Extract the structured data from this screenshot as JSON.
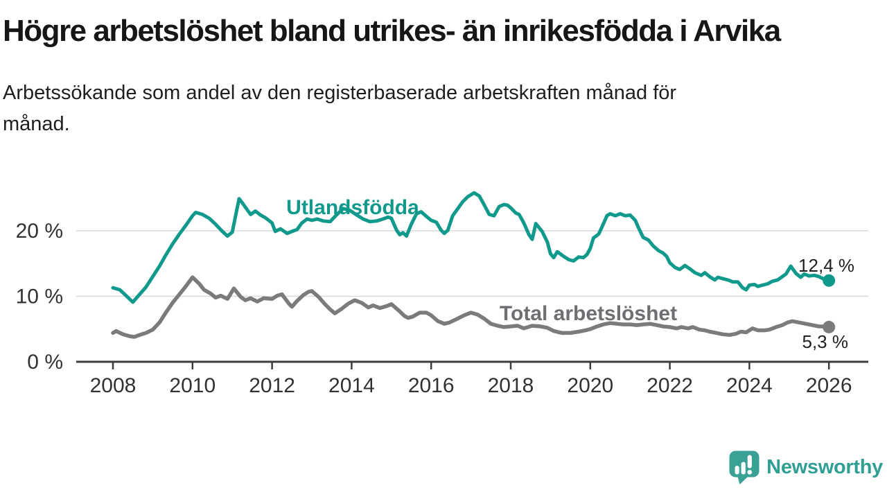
{
  "header": {
    "title": "Högre arbetslöshet bland utrikes- än inrikesfödda i Arvika",
    "subtitle_line1": "Arbetssökande som andel av den registerbaserade arbetskraften månad för",
    "subtitle_line2": "månad."
  },
  "chart_data": {
    "type": "line",
    "title": "Högre arbetslöshet bland utrikes- än inrikesfödda i Arvika",
    "subtitle": "Arbetssökande som andel av den registerbaserade arbetskraften månad för månad.",
    "unit": "%",
    "x_axis": {
      "range": [
        2007.9,
        2026.3
      ],
      "ticks": [
        2008,
        2010,
        2012,
        2014,
        2016,
        2018,
        2020,
        2022,
        2024,
        2026
      ]
    },
    "y_axis": {
      "range": [
        0,
        27
      ],
      "ticks": [
        {
          "value": 0,
          "label": "0 %"
        },
        {
          "value": 10,
          "label": "10 %"
        },
        {
          "value": 20,
          "label": "20 %"
        }
      ],
      "grid_color": "#d9d9d9",
      "axis_color": "#3d3d3d"
    },
    "series": [
      {
        "name": "Utlandsfödda",
        "color": "#119a8c",
        "label_color": "#119a8c",
        "end_label": "12,4 %",
        "end_value": 12.4,
        "points": [
          [
            2008.0,
            11.3
          ],
          [
            2008.17,
            11.0
          ],
          [
            2008.33,
            10.1
          ],
          [
            2008.5,
            9.1
          ],
          [
            2008.67,
            10.3
          ],
          [
            2008.83,
            11.4
          ],
          [
            2009.0,
            13.0
          ],
          [
            2009.17,
            14.6
          ],
          [
            2009.33,
            16.3
          ],
          [
            2009.5,
            18.0
          ],
          [
            2009.67,
            19.5
          ],
          [
            2009.83,
            20.8
          ],
          [
            2010.0,
            22.3
          ],
          [
            2010.08,
            22.8
          ],
          [
            2010.25,
            22.5
          ],
          [
            2010.42,
            21.9
          ],
          [
            2010.58,
            21.0
          ],
          [
            2010.75,
            19.9
          ],
          [
            2010.88,
            19.2
          ],
          [
            2011.0,
            19.8
          ],
          [
            2011.08,
            22.2
          ],
          [
            2011.17,
            24.9
          ],
          [
            2011.25,
            24.3
          ],
          [
            2011.33,
            23.6
          ],
          [
            2011.46,
            22.5
          ],
          [
            2011.58,
            23.0
          ],
          [
            2011.71,
            22.4
          ],
          [
            2011.83,
            22.0
          ],
          [
            2012.0,
            21.2
          ],
          [
            2012.08,
            19.9
          ],
          [
            2012.21,
            20.3
          ],
          [
            2012.38,
            19.6
          ],
          [
            2012.5,
            19.9
          ],
          [
            2012.63,
            20.2
          ],
          [
            2012.75,
            21.2
          ],
          [
            2012.88,
            21.8
          ],
          [
            2013.0,
            21.6
          ],
          [
            2013.13,
            21.8
          ],
          [
            2013.29,
            21.5
          ],
          [
            2013.46,
            21.4
          ],
          [
            2013.63,
            22.5
          ],
          [
            2013.79,
            23.4
          ],
          [
            2013.96,
            23.1
          ],
          [
            2014.13,
            22.4
          ],
          [
            2014.29,
            21.8
          ],
          [
            2014.46,
            21.4
          ],
          [
            2014.63,
            21.5
          ],
          [
            2014.79,
            21.8
          ],
          [
            2014.92,
            22.1
          ],
          [
            2015.0,
            21.9
          ],
          [
            2015.13,
            20.1
          ],
          [
            2015.21,
            19.4
          ],
          [
            2015.29,
            19.7
          ],
          [
            2015.38,
            19.2
          ],
          [
            2015.5,
            21.0
          ],
          [
            2015.63,
            22.6
          ],
          [
            2015.75,
            22.9
          ],
          [
            2015.88,
            22.2
          ],
          [
            2016.0,
            21.6
          ],
          [
            2016.13,
            21.3
          ],
          [
            2016.25,
            20.1
          ],
          [
            2016.33,
            19.6
          ],
          [
            2016.42,
            20.1
          ],
          [
            2016.54,
            22.3
          ],
          [
            2016.67,
            23.4
          ],
          [
            2016.79,
            24.4
          ],
          [
            2016.92,
            25.2
          ],
          [
            2017.08,
            25.8
          ],
          [
            2017.21,
            25.3
          ],
          [
            2017.33,
            24.0
          ],
          [
            2017.46,
            22.5
          ],
          [
            2017.58,
            22.3
          ],
          [
            2017.71,
            23.7
          ],
          [
            2017.83,
            24.0
          ],
          [
            2017.92,
            23.9
          ],
          [
            2018.0,
            23.5
          ],
          [
            2018.13,
            22.7
          ],
          [
            2018.21,
            22.5
          ],
          [
            2018.33,
            21.2
          ],
          [
            2018.46,
            19.4
          ],
          [
            2018.54,
            18.7
          ],
          [
            2018.63,
            21.1
          ],
          [
            2018.79,
            19.9
          ],
          [
            2018.92,
            18.3
          ],
          [
            2019.0,
            16.5
          ],
          [
            2019.08,
            15.9
          ],
          [
            2019.17,
            16.8
          ],
          [
            2019.33,
            16.1
          ],
          [
            2019.46,
            15.6
          ],
          [
            2019.58,
            15.4
          ],
          [
            2019.71,
            16.0
          ],
          [
            2019.83,
            15.9
          ],
          [
            2019.92,
            16.4
          ],
          [
            2020.0,
            17.3
          ],
          [
            2020.08,
            18.9
          ],
          [
            2020.21,
            19.5
          ],
          [
            2020.29,
            20.5
          ],
          [
            2020.42,
            22.3
          ],
          [
            2020.5,
            22.6
          ],
          [
            2020.63,
            22.3
          ],
          [
            2020.75,
            22.6
          ],
          [
            2020.88,
            22.3
          ],
          [
            2021.0,
            22.4
          ],
          [
            2021.13,
            21.6
          ],
          [
            2021.21,
            20.5
          ],
          [
            2021.33,
            19.0
          ],
          [
            2021.46,
            18.6
          ],
          [
            2021.58,
            17.7
          ],
          [
            2021.71,
            17.0
          ],
          [
            2021.83,
            16.6
          ],
          [
            2021.92,
            16.1
          ],
          [
            2022.0,
            15.1
          ],
          [
            2022.13,
            14.4
          ],
          [
            2022.25,
            14.1
          ],
          [
            2022.38,
            14.7
          ],
          [
            2022.5,
            14.2
          ],
          [
            2022.63,
            13.6
          ],
          [
            2022.79,
            13.2
          ],
          [
            2022.88,
            13.6
          ],
          [
            2023.0,
            13.0
          ],
          [
            2023.13,
            12.5
          ],
          [
            2023.21,
            12.9
          ],
          [
            2023.33,
            12.7
          ],
          [
            2023.46,
            12.5
          ],
          [
            2023.58,
            12.2
          ],
          [
            2023.71,
            12.2
          ],
          [
            2023.83,
            11.3
          ],
          [
            2023.92,
            11.0
          ],
          [
            2024.0,
            11.7
          ],
          [
            2024.13,
            11.8
          ],
          [
            2024.21,
            11.5
          ],
          [
            2024.33,
            11.7
          ],
          [
            2024.46,
            11.9
          ],
          [
            2024.58,
            12.3
          ],
          [
            2024.71,
            12.5
          ],
          [
            2024.83,
            13.0
          ],
          [
            2024.92,
            13.4
          ],
          [
            2025.04,
            14.6
          ],
          [
            2025.17,
            13.5
          ],
          [
            2025.29,
            12.9
          ],
          [
            2025.38,
            13.4
          ],
          [
            2025.5,
            13.1
          ],
          [
            2025.63,
            13.2
          ],
          [
            2025.75,
            13.0
          ],
          [
            2025.88,
            12.6
          ],
          [
            2026.0,
            12.4
          ]
        ]
      },
      {
        "name": "Total arbetslöshet",
        "color": "#7b7b7b",
        "label_color": "#6e6e73",
        "end_label": "5,3 %",
        "end_value": 5.3,
        "points": [
          [
            2008.0,
            4.4
          ],
          [
            2008.08,
            4.7
          ],
          [
            2008.25,
            4.2
          ],
          [
            2008.42,
            3.9
          ],
          [
            2008.54,
            3.8
          ],
          [
            2008.67,
            4.1
          ],
          [
            2008.83,
            4.4
          ],
          [
            2009.0,
            4.9
          ],
          [
            2009.17,
            6.0
          ],
          [
            2009.33,
            7.5
          ],
          [
            2009.5,
            9.0
          ],
          [
            2009.67,
            10.3
          ],
          [
            2009.83,
            11.5
          ],
          [
            2010.0,
            12.9
          ],
          [
            2010.17,
            11.9
          ],
          [
            2010.29,
            11.0
          ],
          [
            2010.46,
            10.4
          ],
          [
            2010.58,
            9.8
          ],
          [
            2010.71,
            10.1
          ],
          [
            2010.88,
            9.6
          ],
          [
            2011.04,
            11.2
          ],
          [
            2011.21,
            9.9
          ],
          [
            2011.33,
            9.4
          ],
          [
            2011.46,
            9.7
          ],
          [
            2011.63,
            9.2
          ],
          [
            2011.79,
            9.7
          ],
          [
            2012.0,
            9.6
          ],
          [
            2012.13,
            10.1
          ],
          [
            2012.25,
            10.3
          ],
          [
            2012.42,
            8.9
          ],
          [
            2012.5,
            8.4
          ],
          [
            2012.63,
            9.3
          ],
          [
            2012.79,
            10.2
          ],
          [
            2012.92,
            10.7
          ],
          [
            2013.0,
            10.8
          ],
          [
            2013.17,
            9.9
          ],
          [
            2013.33,
            8.8
          ],
          [
            2013.46,
            8.0
          ],
          [
            2013.58,
            7.4
          ],
          [
            2013.75,
            8.1
          ],
          [
            2013.92,
            8.9
          ],
          [
            2014.08,
            9.4
          ],
          [
            2014.25,
            9.0
          ],
          [
            2014.42,
            8.3
          ],
          [
            2014.54,
            8.6
          ],
          [
            2014.71,
            8.2
          ],
          [
            2014.88,
            8.5
          ],
          [
            2015.0,
            8.8
          ],
          [
            2015.17,
            7.9
          ],
          [
            2015.33,
            7.0
          ],
          [
            2015.42,
            6.7
          ],
          [
            2015.54,
            6.9
          ],
          [
            2015.71,
            7.5
          ],
          [
            2015.88,
            7.5
          ],
          [
            2016.0,
            7.1
          ],
          [
            2016.17,
            6.2
          ],
          [
            2016.33,
            5.8
          ],
          [
            2016.46,
            6.0
          ],
          [
            2016.63,
            6.5
          ],
          [
            2016.83,
            7.1
          ],
          [
            2017.0,
            7.5
          ],
          [
            2017.17,
            7.2
          ],
          [
            2017.33,
            6.6
          ],
          [
            2017.5,
            5.8
          ],
          [
            2017.67,
            5.5
          ],
          [
            2017.83,
            5.3
          ],
          [
            2018.0,
            5.4
          ],
          [
            2018.17,
            5.5
          ],
          [
            2018.33,
            5.1
          ],
          [
            2018.54,
            5.5
          ],
          [
            2018.75,
            5.4
          ],
          [
            2018.92,
            5.2
          ],
          [
            2019.08,
            4.7
          ],
          [
            2019.29,
            4.4
          ],
          [
            2019.5,
            4.4
          ],
          [
            2019.71,
            4.6
          ],
          [
            2019.88,
            4.8
          ],
          [
            2020.0,
            5.0
          ],
          [
            2020.17,
            5.4
          ],
          [
            2020.33,
            5.7
          ],
          [
            2020.5,
            5.9
          ],
          [
            2020.67,
            5.8
          ],
          [
            2020.83,
            5.7
          ],
          [
            2021.0,
            5.7
          ],
          [
            2021.17,
            5.6
          ],
          [
            2021.33,
            5.7
          ],
          [
            2021.5,
            5.8
          ],
          [
            2021.67,
            5.6
          ],
          [
            2021.83,
            5.4
          ],
          [
            2022.0,
            5.3
          ],
          [
            2022.17,
            5.1
          ],
          [
            2022.29,
            5.3
          ],
          [
            2022.46,
            5.1
          ],
          [
            2022.58,
            5.3
          ],
          [
            2022.75,
            4.9
          ],
          [
            2022.88,
            4.8
          ],
          [
            2023.0,
            4.6
          ],
          [
            2023.17,
            4.4
          ],
          [
            2023.33,
            4.2
          ],
          [
            2023.5,
            4.1
          ],
          [
            2023.67,
            4.3
          ],
          [
            2023.79,
            4.6
          ],
          [
            2023.92,
            4.5
          ],
          [
            2024.0,
            4.8
          ],
          [
            2024.08,
            5.1
          ],
          [
            2024.21,
            4.8
          ],
          [
            2024.38,
            4.8
          ],
          [
            2024.5,
            4.9
          ],
          [
            2024.67,
            5.3
          ],
          [
            2024.83,
            5.6
          ],
          [
            2024.96,
            6.0
          ],
          [
            2025.08,
            6.2
          ],
          [
            2025.25,
            6.0
          ],
          [
            2025.42,
            5.8
          ],
          [
            2025.58,
            5.6
          ],
          [
            2025.75,
            5.4
          ],
          [
            2025.88,
            5.4
          ],
          [
            2026.0,
            5.3
          ]
        ]
      }
    ],
    "legend_position": "inline-labels",
    "grid": "horizontal-only"
  },
  "branding": {
    "logo_text": "Newsworthy",
    "logo_icon": "newsworthy-speech-bubble-bar-chart-icon",
    "logo_color": "#2f9f94"
  }
}
